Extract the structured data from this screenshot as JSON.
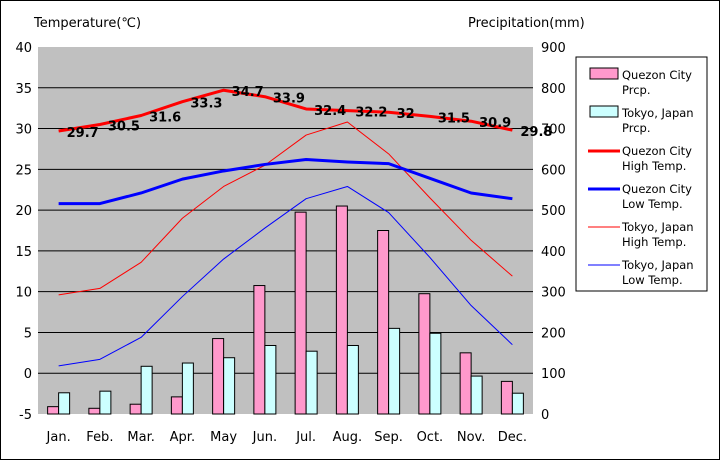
{
  "chart_data": {
    "type": "bar+line",
    "categories": [
      "Jan.",
      "Feb.",
      "Mar.",
      "Apr.",
      "May",
      "Jun.",
      "Jul.",
      "Aug.",
      "Sep.",
      "Oct.",
      "Nov.",
      "Dec."
    ],
    "left_axis": {
      "label": "Temperature(℃)",
      "range": [
        -5,
        40
      ],
      "ticks": [
        -5,
        0,
        5,
        10,
        15,
        20,
        25,
        30,
        35,
        40
      ]
    },
    "right_axis": {
      "label": "Precipitation(mm)",
      "range": [
        0,
        900
      ],
      "ticks": [
        0,
        100,
        200,
        300,
        400,
        500,
        600,
        700,
        800,
        900
      ]
    },
    "grid": true,
    "legend_position": "right",
    "series": [
      {
        "name": "Quezon City Prcp.",
        "kind": "bar",
        "axis": "right",
        "color": "#ff99cc",
        "values": [
          18,
          14,
          24,
          42,
          185,
          315,
          495,
          510,
          450,
          295,
          150,
          80
        ]
      },
      {
        "name": "Tokyo, Japan Prcp.",
        "kind": "bar",
        "axis": "right",
        "color": "#ccffff",
        "values": [
          52,
          56,
          117,
          125,
          138,
          168,
          154,
          168,
          210,
          198,
          93,
          51
        ]
      },
      {
        "name": "Quezon City High Temp.",
        "kind": "line",
        "axis": "left",
        "color": "#ff0000",
        "width": 3,
        "values": [
          29.7,
          30.5,
          31.6,
          33.3,
          34.7,
          33.9,
          32.4,
          32.2,
          32,
          31.5,
          30.9,
          29.8
        ],
        "labels": [
          "29.7",
          "30.5",
          "31.6",
          "33.3",
          "34.7",
          "33.9",
          "32.4",
          "32.2",
          "32",
          "31.5",
          "30.9",
          "29.8"
        ]
      },
      {
        "name": "Quezon City Low Temp.",
        "kind": "line",
        "axis": "left",
        "color": "#0000ff",
        "width": 3,
        "values": [
          20.8,
          20.8,
          22.1,
          23.8,
          24.8,
          25.6,
          26.2,
          25.9,
          25.7,
          23.9,
          22.1,
          21.4
        ]
      },
      {
        "name": "Tokyo, Japan High Temp.",
        "kind": "line",
        "axis": "left",
        "color": "#ff0000",
        "width": 1,
        "values": [
          9.6,
          10.4,
          13.6,
          19.0,
          22.9,
          25.5,
          29.2,
          30.8,
          26.9,
          21.5,
          16.3,
          11.9
        ]
      },
      {
        "name": "Tokyo, Japan Low Temp.",
        "kind": "line",
        "axis": "left",
        "color": "#0000ff",
        "width": 1,
        "values": [
          0.9,
          1.7,
          4.4,
          9.4,
          14.0,
          17.8,
          21.4,
          22.9,
          19.7,
          14.2,
          8.3,
          3.5
        ]
      }
    ],
    "legend": [
      {
        "line1": "Quezon City",
        "line2": "Prcp.",
        "series": 0
      },
      {
        "line1": "Tokyo, Japan",
        "line2": "Prcp.",
        "series": 1
      },
      {
        "line1": "Quezon City",
        "line2": "High Temp.",
        "series": 2
      },
      {
        "line1": "Quezon City",
        "line2": "Low Temp.",
        "series": 3
      },
      {
        "line1": "Tokyo, Japan",
        "line2": "High Temp.",
        "series": 4
      },
      {
        "line1": "Tokyo, Japan",
        "line2": "Low Temp.",
        "series": 5
      }
    ]
  }
}
